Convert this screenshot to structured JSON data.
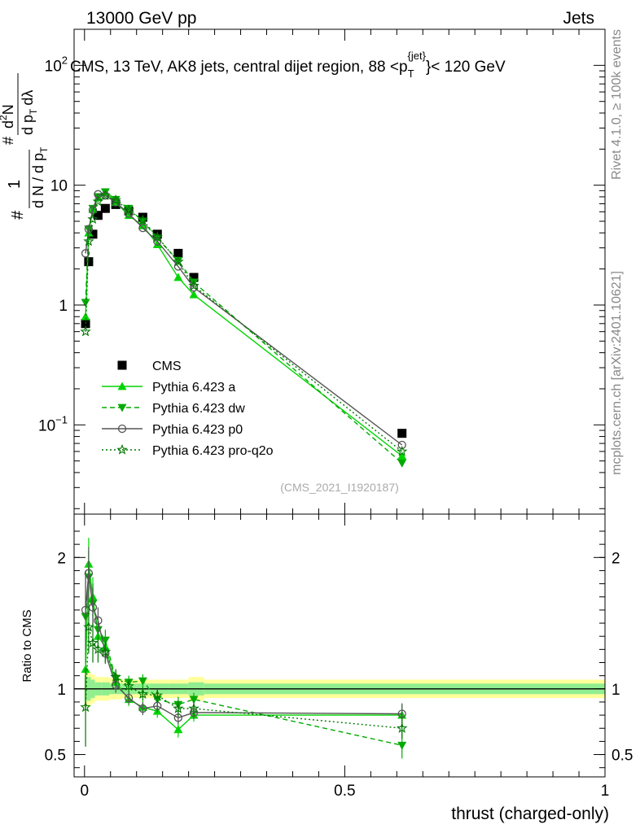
{
  "header": {
    "left": "13000 GeV pp",
    "right": "Jets"
  },
  "side_labels": {
    "rivet": "Rivet 4.1.0, ≥ 100k events",
    "mcplots": "mcplots.cern.ch [arXiv:2401.10621]"
  },
  "watermark": "(CMS_2021_I1920187)",
  "chart_data": [
    {
      "type": "line",
      "panel": "main",
      "title": "CMS, 13 TeV, AK8 jets, central dijet region, 88 <p_T^{jet}< 120 GeV",
      "title_parts": {
        "pre": "CMS, 13 TeV, AK8 jets, central dijet region, 88 <p",
        "sub": "T",
        "sup": "{jet}",
        "post": "}< 120 GeV"
      },
      "ylabel": "1/dN/dpT # d²N/dpT dλ",
      "ylabel_parts": {
        "hash": "#",
        "one": "1",
        "dn": "d N / d p",
        "t": "T",
        "dN2": "d",
        "two": "2",
        "N": "N",
        "dpT": "d p",
        "dl": "dλ"
      },
      "yscale": "log",
      "ylim": [
        0.018,
        200
      ],
      "xlim": [
        -0.02,
        1.0
      ],
      "yticks": [
        {
          "value": 0.1,
          "base": "10",
          "exp": "−1"
        },
        {
          "value": 1,
          "label": "1"
        },
        {
          "value": 10,
          "label": "10"
        },
        {
          "value": 100,
          "base": "10",
          "exp": "2"
        }
      ],
      "series": [
        {
          "name": "CMS",
          "marker": "square",
          "color": "#000000",
          "x": [
            0.002,
            0.008,
            0.016,
            0.026,
            0.04,
            0.06,
            0.085,
            0.112,
            0.14,
            0.18,
            0.21,
            0.61
          ],
          "y": [
            0.7,
            2.3,
            3.9,
            5.6,
            6.4,
            6.9,
            6.1,
            5.4,
            3.9,
            2.7,
            1.7,
            0.085
          ]
        },
        {
          "name": "Pythia 6.423 a",
          "marker": "triangle-up",
          "line": "solid",
          "color": "#00d400",
          "x": [
            0.002,
            0.008,
            0.016,
            0.026,
            0.04,
            0.06,
            0.085,
            0.112,
            0.14,
            0.18,
            0.21,
            0.61
          ],
          "y": [
            0.8,
            4.0,
            6.3,
            7.9,
            8.7,
            7.2,
            5.6,
            4.6,
            3.2,
            1.7,
            1.22,
            0.055
          ]
        },
        {
          "name": "Pythia 6.423 dw",
          "marker": "triangle-down",
          "line": "dashed",
          "color": "#00aa00",
          "x": [
            0.002,
            0.008,
            0.016,
            0.026,
            0.04,
            0.06,
            0.085,
            0.112,
            0.14,
            0.18,
            0.21,
            0.61
          ],
          "y": [
            1.05,
            4.3,
            6.4,
            8.0,
            8.8,
            7.6,
            6.4,
            5.0,
            3.6,
            2.35,
            1.55,
            0.048
          ]
        },
        {
          "name": "Pythia 6.423 p0",
          "marker": "circle-open",
          "line": "solid",
          "color": "#555555",
          "x": [
            0.002,
            0.008,
            0.016,
            0.026,
            0.04,
            0.06,
            0.085,
            0.112,
            0.14,
            0.18,
            0.21,
            0.61
          ],
          "y": [
            2.7,
            4.3,
            6.2,
            8.4,
            8.2,
            7.2,
            5.8,
            4.4,
            3.4,
            2.1,
            1.4,
            0.068
          ]
        },
        {
          "name": "Pythia 6.423 pro-q2o",
          "marker": "star-open",
          "line": "dotted",
          "color": "#007700",
          "x": [
            0.002,
            0.008,
            0.016,
            0.026,
            0.04,
            0.06,
            0.085,
            0.112,
            0.14,
            0.18,
            0.21,
            0.61
          ],
          "y": [
            0.6,
            3.4,
            5.2,
            7.3,
            8.2,
            7.5,
            6.2,
            5.1,
            3.7,
            2.3,
            1.45,
            0.06
          ]
        }
      ]
    },
    {
      "type": "line",
      "panel": "ratio",
      "xlabel": "thrust (charged-only)",
      "ylabel": "Ratio to CMS",
      "ylim": [
        0.33,
        2.33
      ],
      "xlim": [
        -0.02,
        1.0
      ],
      "xticks": [
        {
          "value": 0,
          "label": "0"
        },
        {
          "value": 0.5,
          "label": "0.5"
        },
        {
          "value": 1,
          "label": "1"
        }
      ],
      "yticks": [
        {
          "value": 0.5,
          "label": "0.5"
        },
        {
          "value": 1,
          "label": "1"
        },
        {
          "value": 2,
          "label": "2"
        }
      ],
      "reference_line": 1.0,
      "uncertainty_bands": {
        "bin_edges": [
          0.0,
          0.004,
          0.012,
          0.02,
          0.032,
          0.048,
          0.072,
          0.1,
          0.125,
          0.16,
          0.2,
          0.23,
          1.0
        ],
        "inner_half_width": [
          0.1,
          0.09,
          0.07,
          0.05,
          0.05,
          0.04,
          0.04,
          0.04,
          0.04,
          0.04,
          0.05,
          0.04
        ],
        "outer_half_width": [
          0.14,
          0.13,
          0.11,
          0.09,
          0.09,
          0.08,
          0.07,
          0.07,
          0.07,
          0.07,
          0.09,
          0.07
        ],
        "inner_color": "#90ee90",
        "outer_color": "#ffff99"
      },
      "series": [
        {
          "name": "Pythia 6.423 a",
          "marker": "triangle-up",
          "line": "solid",
          "color": "#00d400",
          "x": [
            0.002,
            0.008,
            0.016,
            0.026,
            0.04,
            0.06,
            0.085,
            0.112,
            0.14,
            0.18,
            0.21,
            0.61
          ],
          "y": [
            1.15,
            1.95,
            1.7,
            1.4,
            1.32,
            1.05,
            0.92,
            0.86,
            0.83,
            0.69,
            0.8,
            0.8
          ],
          "err": [
            0.3,
            0.2,
            0.15,
            0.1,
            0.08,
            0.06,
            0.05,
            0.05,
            0.05,
            0.06,
            0.05,
            0.08
          ]
        },
        {
          "name": "Pythia 6.423 dw",
          "marker": "triangle-down",
          "line": "dashed",
          "color": "#00aa00",
          "x": [
            0.002,
            0.008,
            0.016,
            0.026,
            0.04,
            0.06,
            0.085,
            0.112,
            0.14,
            0.18,
            0.21,
            0.61
          ],
          "y": [
            1.55,
            1.85,
            1.65,
            1.45,
            1.37,
            1.08,
            1.05,
            1.06,
            0.92,
            0.88,
            0.92,
            0.57
          ],
          "err": [
            0.35,
            0.2,
            0.15,
            0.1,
            0.08,
            0.06,
            0.05,
            0.05,
            0.05,
            0.06,
            0.05,
            0.1
          ]
        },
        {
          "name": "Pythia 6.423 p0",
          "marker": "circle-open",
          "line": "solid",
          "color": "#555555",
          "x": [
            0.002,
            0.008,
            0.016,
            0.026,
            0.04,
            0.06,
            0.085,
            0.112,
            0.14,
            0.18,
            0.21,
            0.61
          ],
          "y": [
            1.6,
            1.88,
            1.62,
            1.52,
            1.27,
            1.03,
            0.93,
            0.85,
            0.87,
            0.78,
            0.82,
            0.81
          ],
          "err": [
            0.3,
            0.2,
            0.15,
            0.1,
            0.08,
            0.06,
            0.05,
            0.05,
            0.05,
            0.05,
            0.05,
            0.08
          ]
        },
        {
          "name": "Pythia 6.423 pro-q2o",
          "marker": "star-open",
          "line": "dotted",
          "color": "#007700",
          "x": [
            0.002,
            0.008,
            0.016,
            0.026,
            0.04,
            0.06,
            0.085,
            0.112,
            0.14,
            0.18,
            0.21,
            0.61
          ],
          "y": [
            0.86,
            1.47,
            1.35,
            1.3,
            1.28,
            1.09,
            1.02,
            0.96,
            0.95,
            0.85,
            0.85,
            0.7
          ],
          "err": [
            0.3,
            0.2,
            0.15,
            0.1,
            0.08,
            0.06,
            0.05,
            0.05,
            0.05,
            0.06,
            0.05,
            0.08
          ]
        }
      ]
    }
  ]
}
